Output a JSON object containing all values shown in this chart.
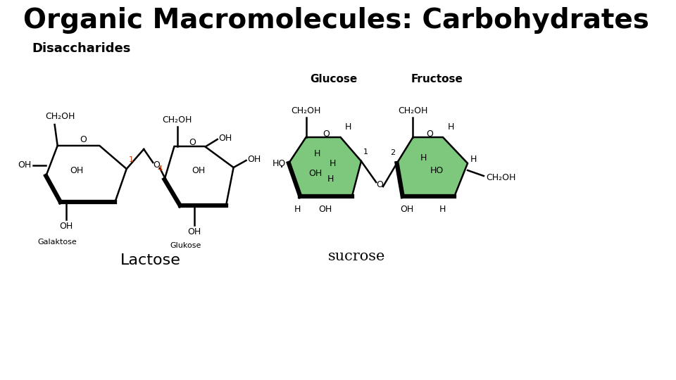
{
  "title": "Organic Macromolecules: Carbohydrates",
  "subtitle": "Disaccharides",
  "title_fontsize": 28,
  "subtitle_fontsize": 13,
  "background_color": "#ffffff",
  "title_color": "#000000",
  "subtitle_color": "#000000",
  "lactose_label": "Lactose",
  "sucrose_label": "sucrose",
  "glucose_label": "Glucose",
  "fructose_label": "Fructose",
  "galaktose_label": "Galaktose",
  "glukose_label": "Glukose",
  "ring_fill_green": "#7dc87d",
  "ring_fill_none": "none",
  "ring_edge_color": "#000000",
  "red_color": "#cc3300"
}
